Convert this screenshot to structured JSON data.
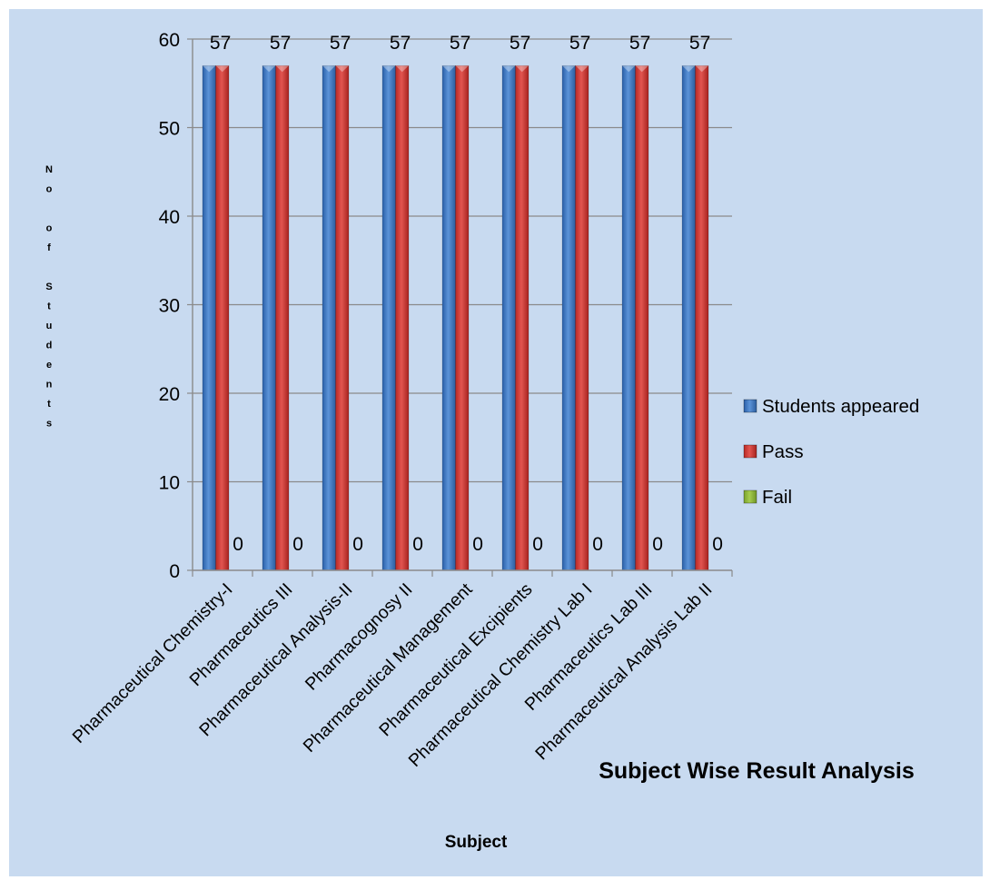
{
  "chart_data": {
    "type": "bar",
    "title": "Subject Wise Result Analysis",
    "xlabel": "Subject",
    "ylabel_letters": [
      "N",
      "o",
      "",
      "o",
      "f",
      "",
      "S",
      "t",
      "u",
      "d",
      "e",
      "n",
      "t",
      "s"
    ],
    "ylim": [
      0,
      60
    ],
    "yticks": [
      0,
      10,
      20,
      30,
      40,
      50,
      60
    ],
    "grid": true,
    "legend_position": "right",
    "categories": [
      "Pharmaceutical  Chemistry-I",
      "Pharmaceutics III",
      "Pharmaceutical Analysis-II",
      "Pharmacognosy II",
      "Pharmaceutical Management",
      "Pharmaceutical Excipients",
      "Pharmaceutical Chemistry Lab I",
      "Pharmaceutics Lab III",
      "Pharmaceutical Analysis Lab II"
    ],
    "series": [
      {
        "name": "Students appeared",
        "color": "#3A75C4",
        "values": [
          57,
          57,
          57,
          57,
          57,
          57,
          57,
          57,
          57
        ]
      },
      {
        "name": "Pass",
        "color": "#D93A36",
        "values": [
          57,
          57,
          57,
          57,
          57,
          57,
          57,
          57,
          57
        ]
      },
      {
        "name": "Fail",
        "color": "#8DB33A",
        "values": [
          0,
          0,
          0,
          0,
          0,
          0,
          0,
          0,
          0
        ]
      }
    ],
    "data_labels": {
      "series_0": "57",
      "series_2": "0"
    },
    "background_color": "#C8DAF0"
  }
}
